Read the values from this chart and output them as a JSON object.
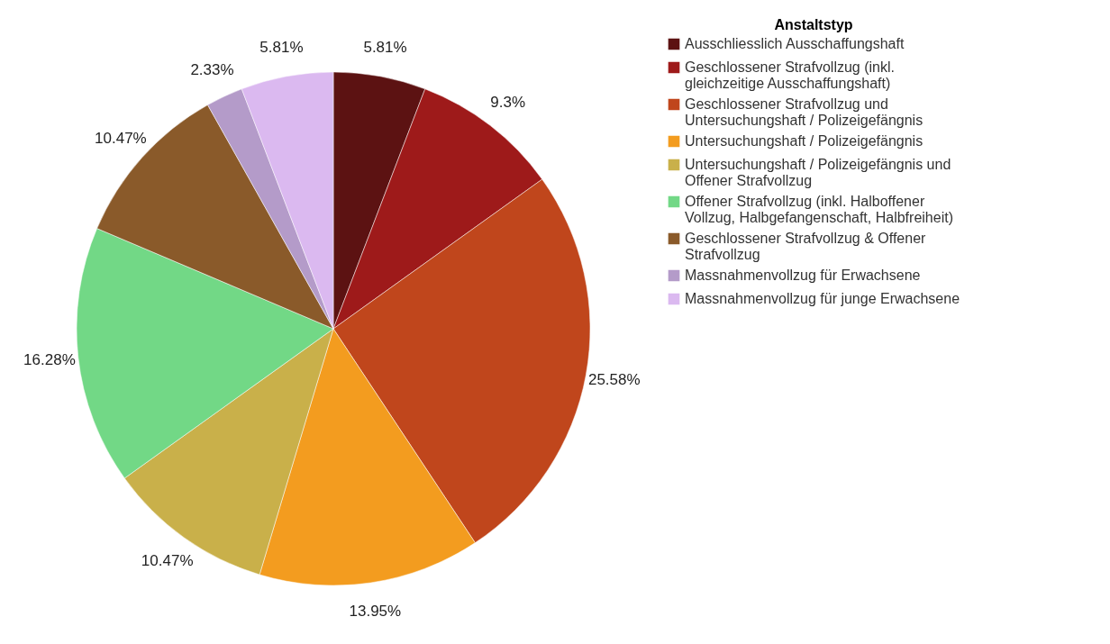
{
  "chart_data": {
    "type": "pie",
    "legend_title": "Anstaltstyp",
    "legend": "top right",
    "categories": [
      "Ausschliesslich Ausschaffungshaft",
      "Geschlossener Strafvollzug (inkl. gleichzeitige Ausschaffungshaft)",
      "Geschlossener Strafvollzug und Untersuchungshaft / Polizeigefängnis",
      "Untersuchungshaft / Polizeigefängnis",
      "Untersuchungshaft / Polizeigefängnis und Offener Strafvollzug",
      "Offener Strafvollzug (inkl. Halboffener Vollzug, Halbgefangenschaft, Halbfreiheit)",
      "Geschlossener Strafvollzug & Offener Strafvollzug",
      "Massnahmenvollzug für Erwachsene",
      "Massnahmenvollzug für junge Erwachsene"
    ],
    "values": [
      5.81,
      9.3,
      25.58,
      13.95,
      10.47,
      16.28,
      10.47,
      2.33,
      5.81
    ],
    "value_labels": [
      "5.81%",
      "9.3%",
      "25.58%",
      "13.95%",
      "10.47%",
      "16.28%",
      "10.47%",
      "2.33%",
      "5.81%"
    ],
    "colors": [
      "#5c1212",
      "#9e1a1a",
      "#c0461c",
      "#f39c1f",
      "#c9b04a",
      "#72d886",
      "#8a5a2a",
      "#b49bc9",
      "#dbb9f0"
    ]
  }
}
